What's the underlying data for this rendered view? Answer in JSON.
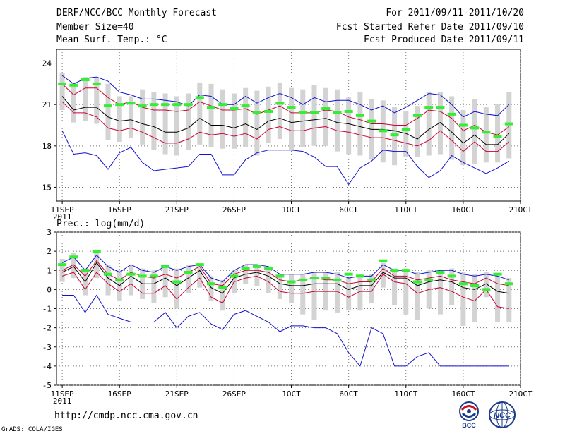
{
  "header": {
    "title": "DERF/NCC/BCC Monthly Forecast",
    "member_size": "Member Size=40",
    "variable": "Mean Surf. Temp.: °C",
    "forecast_period": "For 2011/09/11-2011/10/20",
    "started_date": "Fcst Started Refer Date 2011/09/10",
    "produced_date": "Fcst Produced Date 2011/09/11"
  },
  "footer": {
    "url": "http://cmdp.ncc.cma.gov.cn",
    "credit": "GrADS: COLA/IGES",
    "logo_bcc": "BCC",
    "logo_ncc": "NCC"
  },
  "colors": {
    "ensemble_bar": "#d3d3d3",
    "ensemble_mean": "#000000",
    "spread_line": "#cc0033",
    "extreme_line": "#1010d0",
    "obs_marker": "#33ee33",
    "grid": "#777777"
  },
  "chart_data": [
    {
      "type": "line",
      "title": "Mean Surf. Temp.: °C",
      "xlabel": "",
      "ylabel": "",
      "x": [
        1,
        2,
        3,
        4,
        5,
        6,
        7,
        8,
        9,
        10,
        11,
        12,
        13,
        14,
        15,
        16,
        17,
        18,
        19,
        20,
        21,
        22,
        23,
        24,
        25,
        26,
        27,
        28,
        29,
        30,
        31,
        32,
        33,
        34,
        35,
        36,
        37,
        38,
        39,
        40
      ],
      "xlim": [
        0.5,
        41
      ],
      "ylim": [
        14,
        25
      ],
      "yticks": [
        15,
        18,
        21,
        24
      ],
      "ytick_labels": [
        "15",
        "18",
        "21",
        "24"
      ],
      "xticks": [
        1,
        6,
        11,
        16,
        21,
        26,
        31,
        36,
        41
      ],
      "xtick_labels": [
        "11SEP",
        "16SEP",
        "21SEP",
        "26SEP",
        "1OCT",
        "6OCT",
        "11OCT",
        "16OCT",
        "21OCT"
      ],
      "xtick_year": "2011",
      "grid": true,
      "series": [
        {
          "name": "max",
          "style": "line",
          "color": "#1010d0",
          "values": [
            23.1,
            22.5,
            22.9,
            23.0,
            22.7,
            21.9,
            21.7,
            21.4,
            21.4,
            21.3,
            21.2,
            20.9,
            21.7,
            21.6,
            21.0,
            21.0,
            21.6,
            21.1,
            21.5,
            21.8,
            21.5,
            21.0,
            21.5,
            21.2,
            21.3,
            21.3,
            21.0,
            20.6,
            20.9,
            20.4,
            20.8,
            21.3,
            21.8,
            21.7,
            21.0,
            20.1,
            20.5,
            20.3,
            20.2,
            21.0
          ]
        },
        {
          "name": "upper",
          "style": "line",
          "color": "#cc0033",
          "values": [
            22.5,
            21.7,
            22.2,
            22.2,
            21.5,
            21.0,
            21.2,
            20.8,
            20.6,
            20.6,
            20.5,
            20.6,
            21.2,
            20.9,
            20.6,
            20.6,
            20.7,
            20.3,
            20.6,
            20.9,
            20.4,
            20.4,
            20.4,
            20.6,
            20.5,
            20.1,
            19.9,
            19.6,
            19.6,
            19.5,
            19.5,
            20.0,
            20.6,
            20.5,
            20.0,
            19.1,
            19.5,
            19.0,
            18.8,
            19.4
          ]
        },
        {
          "name": "mean",
          "style": "line",
          "color": "#000000",
          "values": [
            21.6,
            20.6,
            20.8,
            20.8,
            20.1,
            19.8,
            19.9,
            19.6,
            19.4,
            19.0,
            19.0,
            19.3,
            20.0,
            19.5,
            19.5,
            19.3,
            19.6,
            19.2,
            19.8,
            20.0,
            19.7,
            19.8,
            19.9,
            20.0,
            19.7,
            19.6,
            19.4,
            19.2,
            19.2,
            19.1,
            18.9,
            18.5,
            19.2,
            19.7,
            19.0,
            18.2,
            18.8,
            18.1,
            18.1,
            18.9
          ]
        },
        {
          "name": "lower",
          "style": "line",
          "color": "#cc0033",
          "values": [
            21.2,
            20.4,
            20.4,
            20.1,
            19.3,
            19.1,
            19.3,
            19.0,
            18.6,
            18.2,
            18.2,
            18.5,
            19.0,
            18.8,
            18.9,
            18.7,
            18.9,
            18.5,
            19.2,
            19.4,
            19.1,
            19.1,
            19.3,
            19.4,
            19.1,
            19.0,
            18.8,
            18.6,
            18.6,
            18.4,
            18.2,
            18.0,
            18.4,
            19.1,
            18.4,
            17.6,
            18.3,
            17.6,
            17.6,
            18.3
          ]
        },
        {
          "name": "min",
          "style": "line",
          "color": "#1010d0",
          "values": [
            19.1,
            17.4,
            17.5,
            17.3,
            16.3,
            17.5,
            17.9,
            16.8,
            16.2,
            16.3,
            16.4,
            16.5,
            17.4,
            17.4,
            15.9,
            15.9,
            17.0,
            17.5,
            17.7,
            17.7,
            17.7,
            17.6,
            17.2,
            16.5,
            16.5,
            15.2,
            16.4,
            16.9,
            17.7,
            17.6,
            17.6,
            16.5,
            15.7,
            16.2,
            17.3,
            16.8,
            16.4,
            16.0,
            16.4,
            16.9
          ]
        },
        {
          "name": "ensemble_box_top",
          "style": "bar",
          "color": "#d3d3d3",
          "values": [
            23.3,
            22.6,
            23.0,
            22.9,
            22.5,
            21.6,
            21.6,
            22.1,
            21.9,
            21.8,
            21.6,
            21.8,
            22.6,
            22.5,
            22.1,
            21.8,
            22.2,
            22.0,
            22.3,
            22.6,
            22.2,
            22.1,
            22.4,
            22.2,
            22.1,
            21.5,
            21.9,
            21.4,
            21.3,
            20.8,
            20.5,
            20.9,
            21.9,
            21.9,
            21.6,
            20.6,
            21.4,
            20.8,
            21.0,
            21.9
          ]
        },
        {
          "name": "ensemble_box_bottom",
          "style": "bar",
          "color": "#d3d3d3",
          "values": [
            20.6,
            19.7,
            19.8,
            19.6,
            18.4,
            18.3,
            18.6,
            18.1,
            17.7,
            17.4,
            17.3,
            17.7,
            18.1,
            17.9,
            17.8,
            17.8,
            17.9,
            17.3,
            18.2,
            18.5,
            17.7,
            17.9,
            18.0,
            18.0,
            17.6,
            17.4,
            17.3,
            17.0,
            16.8,
            16.6,
            17.2,
            17.2,
            17.3,
            17.4,
            17.0,
            16.6,
            16.7,
            16.8,
            16.8,
            17.1
          ]
        },
        {
          "name": "observed",
          "style": "marker",
          "color": "#33ee33",
          "values": [
            22.5,
            22.4,
            22.8,
            22.5,
            20.9,
            21.0,
            21.1,
            20.9,
            21.0,
            21.0,
            21.0,
            21.0,
            21.5,
            20.8,
            21.0,
            20.7,
            20.9,
            20.4,
            20.5,
            21.1,
            20.8,
            20.4,
            20.4,
            20.7,
            20.4,
            20.5,
            20.2,
            19.8,
            19.1,
            18.8,
            19.2,
            20.2,
            20.8,
            20.8,
            20.3,
            19.5,
            19.3,
            19.0,
            18.7,
            19.6
          ]
        }
      ]
    },
    {
      "type": "line",
      "title": "Prec.: log(mm/d)",
      "xlabel": "",
      "ylabel": "",
      "x": [
        1,
        2,
        3,
        4,
        5,
        6,
        7,
        8,
        9,
        10,
        11,
        12,
        13,
        14,
        15,
        16,
        17,
        18,
        19,
        20,
        21,
        22,
        23,
        24,
        25,
        26,
        27,
        28,
        29,
        30,
        31,
        32,
        33,
        34,
        35,
        36,
        37,
        38,
        39,
        40
      ],
      "xlim": [
        0.5,
        41
      ],
      "ylim": [
        -5,
        3
      ],
      "yticks": [
        -5,
        -4,
        -3,
        -2,
        -1,
        0,
        1,
        2,
        3
      ],
      "ytick_labels": [
        "-5",
        "-4",
        "-3",
        "-2",
        "-1",
        "0",
        "1",
        "2",
        "3"
      ],
      "xticks": [
        1,
        6,
        11,
        16,
        21,
        26,
        31,
        36,
        41
      ],
      "xtick_labels": [
        "11SEP",
        "16SEP",
        "21SEP",
        "26SEP",
        "1OCT",
        "6OCT",
        "11OCT",
        "16OCT",
        "21OCT"
      ],
      "xtick_year": "2011",
      "grid": true,
      "series": [
        {
          "name": "max",
          "style": "line",
          "color": "#1010d0",
          "values": [
            1.4,
            1.7,
            1.0,
            1.8,
            1.2,
            0.9,
            1.3,
            1.0,
            0.9,
            1.2,
            1.0,
            1.2,
            1.3,
            0.6,
            0.4,
            1.0,
            1.3,
            1.3,
            1.2,
            0.8,
            0.8,
            0.8,
            0.9,
            0.9,
            0.8,
            0.6,
            0.7,
            0.7,
            1.3,
            1.0,
            1.0,
            0.8,
            0.9,
            1.0,
            1.0,
            0.8,
            0.7,
            0.8,
            0.7,
            0.5
          ]
        },
        {
          "name": "upper",
          "style": "line",
          "color": "#cc0033",
          "values": [
            1.0,
            1.3,
            0.7,
            1.5,
            0.8,
            0.5,
            0.9,
            0.7,
            0.6,
            0.8,
            0.6,
            0.9,
            1.2,
            0.3,
            0.2,
            0.8,
            1.0,
            1.0,
            0.9,
            0.5,
            0.4,
            0.5,
            0.6,
            0.5,
            0.5,
            0.3,
            0.4,
            0.4,
            1.1,
            0.7,
            0.7,
            0.5,
            0.6,
            0.7,
            0.5,
            0.4,
            0.3,
            0.6,
            0.3,
            0.2
          ]
        },
        {
          "name": "mean",
          "style": "line",
          "color": "#000000",
          "values": [
            0.9,
            1.2,
            0.4,
            1.4,
            0.6,
            0.2,
            0.7,
            0.3,
            0.3,
            0.6,
            0.2,
            0.6,
            1.0,
            0.1,
            -0.2,
            0.6,
            0.8,
            0.9,
            0.7,
            0.3,
            0.2,
            0.2,
            0.3,
            0.3,
            0.3,
            0.0,
            0.2,
            0.2,
            0.9,
            0.6,
            0.6,
            0.2,
            0.4,
            0.5,
            0.4,
            0.1,
            0.0,
            0.3,
            -0.1,
            -0.2
          ]
        },
        {
          "name": "lower",
          "style": "line",
          "color": "#cc0033",
          "values": [
            0.7,
            0.9,
            0.0,
            0.9,
            0.3,
            -0.1,
            0.3,
            -0.2,
            -0.2,
            0.2,
            -0.5,
            0.1,
            0.6,
            -0.4,
            -0.7,
            0.4,
            0.6,
            0.7,
            0.4,
            -0.1,
            -0.2,
            -0.2,
            -0.1,
            -0.1,
            -0.1,
            -0.4,
            -0.1,
            -0.1,
            0.8,
            0.4,
            0.3,
            -0.2,
            0.0,
            0.1,
            -0.1,
            -0.4,
            -0.6,
            0.0,
            -0.9,
            -1.0
          ]
        },
        {
          "name": "min",
          "style": "line",
          "color": "#1010d0",
          "values": [
            -0.3,
            -0.3,
            -1.2,
            -0.3,
            -1.3,
            -1.5,
            -1.7,
            -1.7,
            -1.7,
            -1.2,
            -2.0,
            -1.4,
            -1.2,
            -1.8,
            -2.1,
            -1.3,
            -1.1,
            -1.4,
            -1.7,
            -2.2,
            -1.9,
            -1.9,
            -2.0,
            -2.0,
            -2.3,
            -3.3,
            -4.0,
            -2.0,
            -2.3,
            -4.0,
            -4.0,
            -3.5,
            -3.3,
            -4.0,
            -4.0,
            -4.0,
            -4.0,
            -4.0,
            -4.0,
            -4.0
          ]
        },
        {
          "name": "ensemble_box_top",
          "style": "bar",
          "color": "#d3d3d3",
          "values": [
            1.6,
            1.9,
            1.1,
            2.0,
            1.3,
            1.0,
            1.3,
            1.1,
            1.0,
            1.3,
            1.1,
            1.3,
            1.3,
            0.7,
            0.5,
            1.0,
            1.3,
            1.3,
            1.2,
            0.8,
            0.8,
            0.8,
            0.9,
            0.9,
            0.9,
            0.6,
            0.8,
            0.8,
            1.4,
            1.1,
            1.1,
            0.9,
            1.0,
            1.0,
            1.1,
            0.9,
            0.8,
            0.9,
            0.7,
            0.6
          ]
        },
        {
          "name": "ensemble_box_bottom",
          "style": "bar",
          "color": "#d3d3d3",
          "values": [
            0.4,
            0.6,
            -0.3,
            0.6,
            -0.3,
            -0.6,
            -0.3,
            -0.5,
            -0.7,
            -0.4,
            -1.0,
            -0.2,
            0.1,
            -0.6,
            -1.1,
            -0.2,
            0.3,
            0.2,
            -0.2,
            -0.5,
            -0.7,
            -1.3,
            -1.6,
            -1.1,
            -1.2,
            -1.1,
            -1.1,
            -0.7,
            0.1,
            -0.8,
            -1.3,
            -1.6,
            -1.0,
            -1.3,
            -0.8,
            -1.9,
            -1.7,
            -0.4,
            -1.7,
            -1.7
          ]
        },
        {
          "name": "observed",
          "style": "marker",
          "color": "#33ee33",
          "values": [
            1.3,
            1.7,
            1.0,
            2.0,
            0.8,
            0.5,
            0.8,
            0.7,
            0.7,
            1.2,
            0.4,
            0.9,
            1.3,
            0.3,
            0.1,
            0.7,
            1.1,
            1.2,
            1.1,
            0.7,
            0.4,
            0.5,
            0.6,
            0.6,
            0.5,
            0.8,
            0.7,
            0.5,
            1.5,
            1.0,
            1.0,
            0.4,
            0.5,
            0.9,
            0.7,
            0.3,
            0.2,
            0.0,
            0.8,
            0.3
          ]
        }
      ]
    }
  ]
}
